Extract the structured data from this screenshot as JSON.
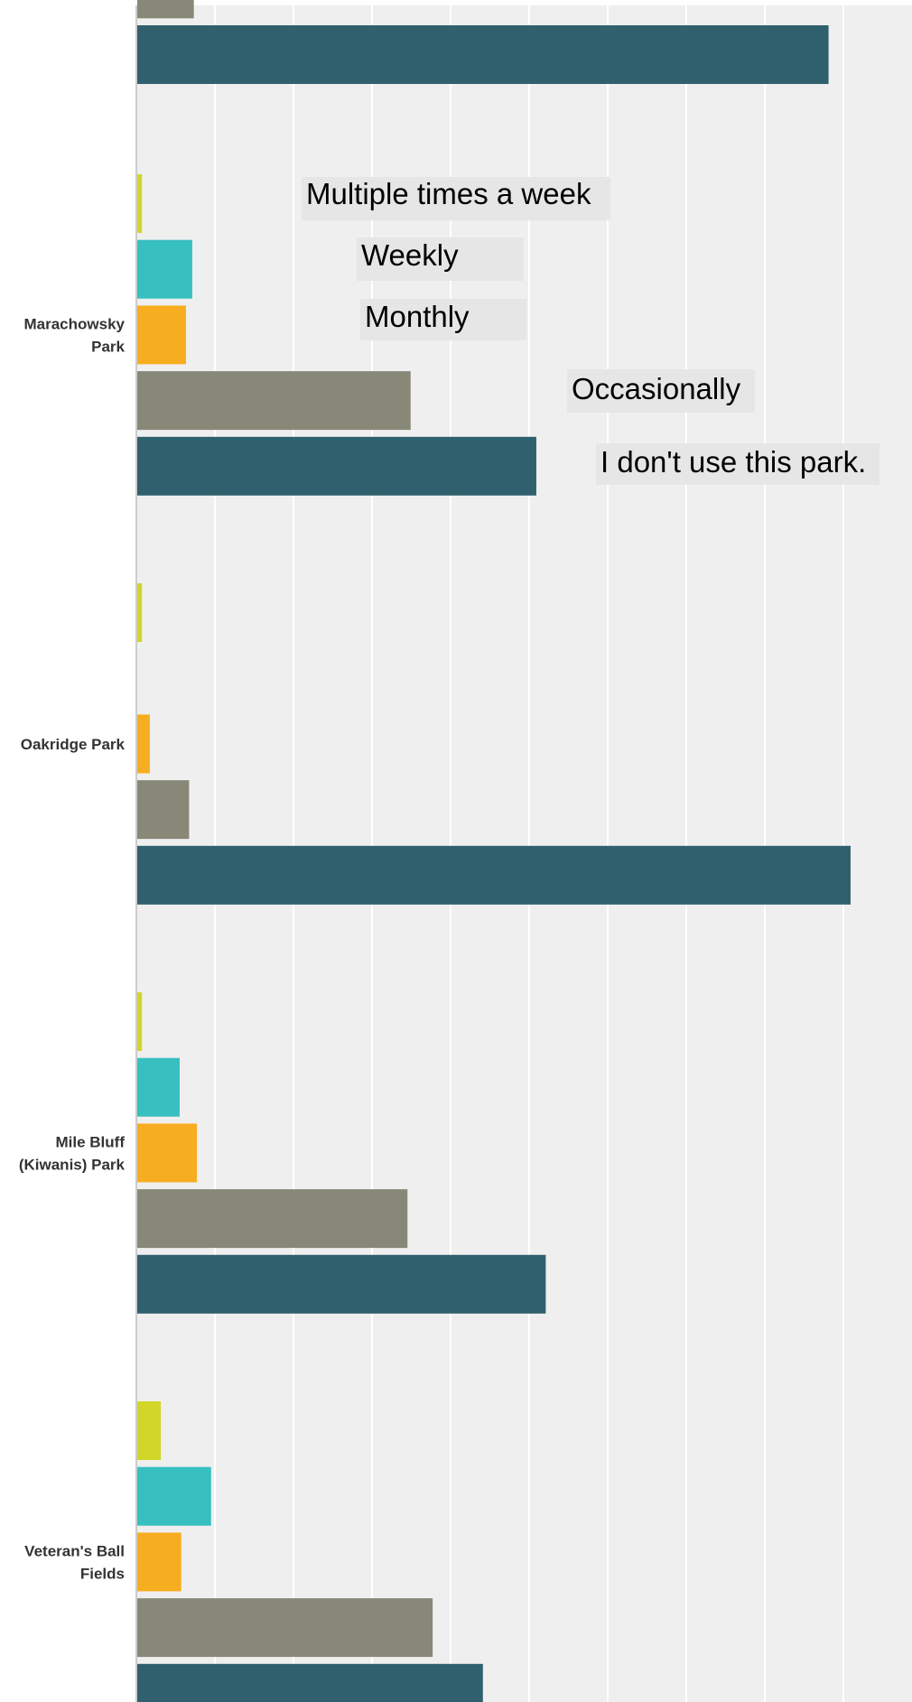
{
  "chart_data": {
    "type": "bar",
    "orientation": "horizontal",
    "grid": true,
    "xlim": [
      0,
      45
    ],
    "series": [
      {
        "name": "Multiple times a week",
        "color": "#d1d629"
      },
      {
        "name": "Weekly",
        "color": "#38bfc0"
      },
      {
        "name": "Monthly",
        "color": "#f6ad20"
      },
      {
        "name": "Occasionally",
        "color": "#888878"
      },
      {
        "name": "I don't use this park.",
        "color": "#30606e"
      }
    ],
    "groups": [
      {
        "label_lines": [],
        "values": [
          null,
          null,
          null,
          3.6,
          44.0
        ],
        "partial": true
      },
      {
        "label_lines": [
          "Marachowsky",
          "Park"
        ],
        "values": [
          0.3,
          3.5,
          3.1,
          17.4,
          25.4
        ]
      },
      {
        "label_lines": [
          "Oakridge Park"
        ],
        "values": [
          0.3,
          0,
          0.8,
          3.3,
          45.4
        ]
      },
      {
        "label_lines": [
          "Mile Bluff",
          "(Kiwanis) Park"
        ],
        "values": [
          0.3,
          2.7,
          3.8,
          17.2,
          26.0
        ]
      },
      {
        "label_lines": [
          "Veteran's Ball",
          "Fields"
        ],
        "values": [
          1.5,
          4.7,
          2.8,
          18.8,
          22.0
        ]
      }
    ]
  },
  "colors": {
    "plot_bg": "#efefef",
    "grid": "#ffffff",
    "axis": "#cccccc",
    "legend_bg": "#e6e6e6"
  }
}
